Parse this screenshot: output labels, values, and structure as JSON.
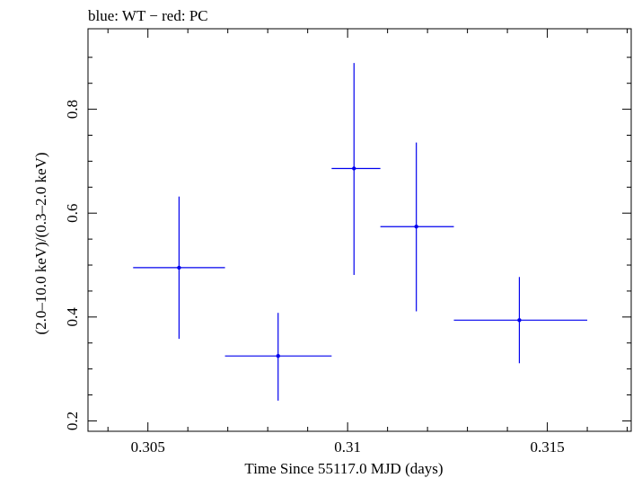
{
  "chart_data": {
    "type": "scatter",
    "title": "blue: WT − red: PC",
    "xlabel": "Time Since 55117.0 MJD (days)",
    "ylabel": "(2.0–10.0 keV)/(0.3–2.0 keV)",
    "xlim": [
      0.3035,
      0.3171
    ],
    "ylim": [
      0.18,
      0.955
    ],
    "x_major_ticks": [
      0.305,
      0.31,
      0.315
    ],
    "x_tick_labels": [
      "0.305",
      "0.31",
      "0.315"
    ],
    "x_minor_ticks": [
      0.304,
      0.306,
      0.307,
      0.308,
      0.309,
      0.311,
      0.312,
      0.313,
      0.314,
      0.316,
      0.317
    ],
    "y_major_ticks": [
      0.2,
      0.4,
      0.6,
      0.8
    ],
    "y_tick_labels": [
      "0.2",
      "0.4",
      "0.6",
      "0.8"
    ],
    "y_minor_ticks": [
      0.25,
      0.3,
      0.35,
      0.45,
      0.5,
      0.55,
      0.65,
      0.7,
      0.75,
      0.85,
      0.9
    ],
    "grid": false,
    "series": [
      {
        "name": "WT",
        "color": "#0000ee",
        "points": [
          {
            "x": 0.30578,
            "y": 0.495,
            "xerr_low": 0.30463,
            "xerr_high": 0.30693,
            "yerr_low": 0.358,
            "yerr_high": 0.632
          },
          {
            "x": 0.30826,
            "y": 0.325,
            "xerr_low": 0.30693,
            "xerr_high": 0.3096,
            "yerr_low": 0.239,
            "yerr_high": 0.408
          },
          {
            "x": 0.31016,
            "y": 0.686,
            "xerr_low": 0.3096,
            "xerr_high": 0.31082,
            "yerr_low": 0.481,
            "yerr_high": 0.889
          },
          {
            "x": 0.31172,
            "y": 0.574,
            "xerr_low": 0.31082,
            "xerr_high": 0.31266,
            "yerr_low": 0.411,
            "yerr_high": 0.736
          },
          {
            "x": 0.3143,
            "y": 0.394,
            "xerr_low": 0.31266,
            "xerr_high": 0.316,
            "yerr_low": 0.311,
            "yerr_high": 0.477
          }
        ]
      }
    ]
  }
}
